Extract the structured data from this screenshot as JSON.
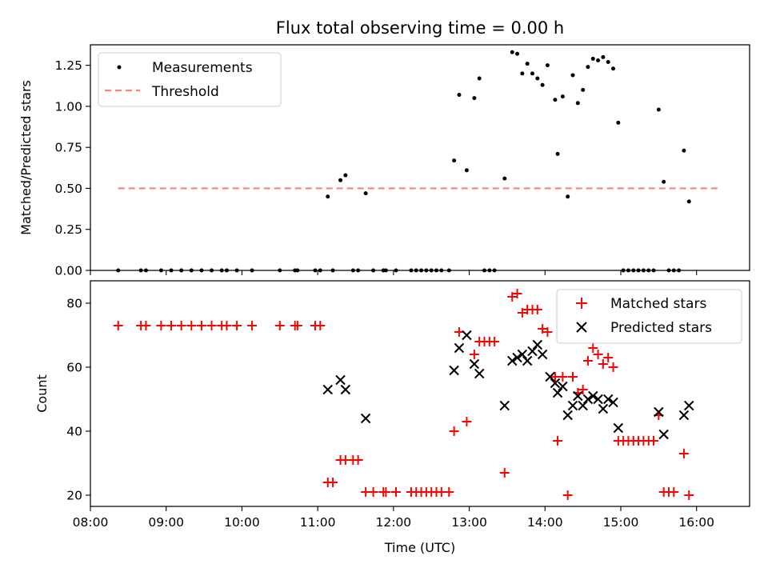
{
  "title": "Flux total observing time = 0.00 h",
  "colors": {
    "measurement": "#000000",
    "threshold": "#ff7f7f",
    "matched": "#ff0000",
    "predicted": "#000000",
    "axis": "#000000"
  },
  "chart_data": [
    {
      "type": "scatter",
      "ylabel": "Matched/Predicted stars",
      "ylim": [
        0,
        1.375
      ],
      "xlim": [
        "08:00",
        "16:42"
      ],
      "yticks": [
        "0.00",
        "0.25",
        "0.50",
        "0.75",
        "1.00",
        "1.25"
      ],
      "legend": {
        "placement": "top-left",
        "entries": [
          "Measurements",
          "Threshold"
        ]
      },
      "threshold": {
        "name": "Threshold",
        "value": 0.5,
        "x_start": "08:22",
        "x_end": "16:18",
        "style": "dashed"
      },
      "series": [
        {
          "name": "Measurements",
          "marker": "dot",
          "points": [
            [
              "08:22",
              0
            ],
            [
              "08:40",
              0
            ],
            [
              "08:44",
              0
            ],
            [
              "08:56",
              0
            ],
            [
              "09:04",
              0
            ],
            [
              "09:12",
              0
            ],
            [
              "09:20",
              0
            ],
            [
              "09:28",
              0
            ],
            [
              "09:36",
              0
            ],
            [
              "09:44",
              0
            ],
            [
              "09:48",
              0
            ],
            [
              "09:56",
              0
            ],
            [
              "10:08",
              0
            ],
            [
              "10:30",
              0
            ],
            [
              "10:42",
              0
            ],
            [
              "10:44",
              0
            ],
            [
              "10:58",
              0
            ],
            [
              "11:02",
              0
            ],
            [
              "11:08",
              0.45
            ],
            [
              "11:12",
              0
            ],
            [
              "11:18",
              0.55
            ],
            [
              "11:22",
              0.58
            ],
            [
              "11:28",
              0
            ],
            [
              "11:32",
              0
            ],
            [
              "11:38",
              0.47
            ],
            [
              "11:44",
              0
            ],
            [
              "11:52",
              0
            ],
            [
              "11:54",
              0
            ],
            [
              "12:02",
              0
            ],
            [
              "12:14",
              0
            ],
            [
              "12:18",
              0
            ],
            [
              "12:22",
              0
            ],
            [
              "12:26",
              0
            ],
            [
              "12:30",
              0
            ],
            [
              "12:34",
              0
            ],
            [
              "12:38",
              0
            ],
            [
              "12:44",
              0
            ],
            [
              "12:48",
              0.67
            ],
            [
              "12:52",
              1.07
            ],
            [
              "12:58",
              0.61
            ],
            [
              "13:04",
              1.05
            ],
            [
              "13:08",
              1.17
            ],
            [
              "13:12",
              0
            ],
            [
              "13:16",
              0
            ],
            [
              "13:20",
              0
            ],
            [
              "13:28",
              0.56
            ],
            [
              "13:34",
              1.33
            ],
            [
              "13:38",
              1.32
            ],
            [
              "13:42",
              1.2
            ],
            [
              "13:46",
              1.26
            ],
            [
              "13:50",
              1.2
            ],
            [
              "13:54",
              1.17
            ],
            [
              "13:58",
              1.13
            ],
            [
              "14:02",
              1.25
            ],
            [
              "14:08",
              1.04
            ],
            [
              "14:10",
              0.71
            ],
            [
              "14:14",
              1.06
            ],
            [
              "14:18",
              0.45
            ],
            [
              "14:22",
              1.19
            ],
            [
              "14:26",
              1.02
            ],
            [
              "14:30",
              1.1
            ],
            [
              "14:34",
              1.24
            ],
            [
              "14:38",
              1.29
            ],
            [
              "14:42",
              1.28
            ],
            [
              "14:46",
              1.3
            ],
            [
              "14:50",
              1.27
            ],
            [
              "14:54",
              1.23
            ],
            [
              "14:58",
              0.9
            ],
            [
              "15:02",
              0
            ],
            [
              "15:06",
              0
            ],
            [
              "15:10",
              0
            ],
            [
              "15:14",
              0
            ],
            [
              "15:18",
              0
            ],
            [
              "15:22",
              0
            ],
            [
              "15:26",
              0
            ],
            [
              "15:30",
              0.98
            ],
            [
              "15:34",
              0.54
            ],
            [
              "15:38",
              0
            ],
            [
              "15:42",
              0
            ],
            [
              "15:46",
              0
            ],
            [
              "15:50",
              0.73
            ],
            [
              "15:54",
              0.42
            ]
          ]
        }
      ]
    },
    {
      "type": "scatter",
      "xlabel": "Time (UTC)",
      "ylabel": "Count",
      "ylim": [
        16.5,
        87
      ],
      "xlim": [
        "08:00",
        "16:42"
      ],
      "yticks": [
        "20",
        "40",
        "60",
        "80"
      ],
      "xticks": [
        "08:00",
        "09:00",
        "10:00",
        "11:00",
        "12:00",
        "13:00",
        "14:00",
        "15:00",
        "16:00"
      ],
      "legend": {
        "placement": "top-right",
        "entries": [
          "Matched stars",
          "Predicted stars"
        ]
      },
      "series": [
        {
          "name": "Matched stars",
          "marker": "plus",
          "points": [
            [
              "08:22",
              73
            ],
            [
              "08:40",
              73
            ],
            [
              "08:44",
              73
            ],
            [
              "08:56",
              73
            ],
            [
              "09:04",
              73
            ],
            [
              "09:12",
              73
            ],
            [
              "09:20",
              73
            ],
            [
              "09:28",
              73
            ],
            [
              "09:36",
              73
            ],
            [
              "09:44",
              73
            ],
            [
              "09:48",
              73
            ],
            [
              "09:56",
              73
            ],
            [
              "10:08",
              73
            ],
            [
              "10:30",
              73
            ],
            [
              "10:42",
              73
            ],
            [
              "10:44",
              73
            ],
            [
              "10:58",
              73
            ],
            [
              "11:02",
              73
            ],
            [
              "11:08",
              24
            ],
            [
              "11:12",
              24
            ],
            [
              "11:18",
              31
            ],
            [
              "11:22",
              31
            ],
            [
              "11:28",
              31
            ],
            [
              "11:32",
              31
            ],
            [
              "11:38",
              21
            ],
            [
              "11:44",
              21
            ],
            [
              "11:52",
              21
            ],
            [
              "11:54",
              21
            ],
            [
              "12:02",
              21
            ],
            [
              "12:14",
              21
            ],
            [
              "12:18",
              21
            ],
            [
              "12:22",
              21
            ],
            [
              "12:26",
              21
            ],
            [
              "12:30",
              21
            ],
            [
              "12:34",
              21
            ],
            [
              "12:38",
              21
            ],
            [
              "12:44",
              21
            ],
            [
              "12:48",
              40
            ],
            [
              "12:52",
              71
            ],
            [
              "12:58",
              43
            ],
            [
              "13:04",
              64
            ],
            [
              "13:08",
              68
            ],
            [
              "13:12",
              68
            ],
            [
              "13:16",
              68
            ],
            [
              "13:20",
              68
            ],
            [
              "13:28",
              27
            ],
            [
              "13:34",
              82
            ],
            [
              "13:38",
              83
            ],
            [
              "13:42",
              77
            ],
            [
              "13:46",
              78
            ],
            [
              "13:50",
              78
            ],
            [
              "13:54",
              78
            ],
            [
              "13:58",
              72
            ],
            [
              "14:02",
              71
            ],
            [
              "14:08",
              57
            ],
            [
              "14:10",
              37
            ],
            [
              "14:14",
              57
            ],
            [
              "14:18",
              20
            ],
            [
              "14:22",
              57
            ],
            [
              "14:26",
              52
            ],
            [
              "14:30",
              53
            ],
            [
              "14:34",
              62
            ],
            [
              "14:38",
              66
            ],
            [
              "14:42",
              64
            ],
            [
              "14:46",
              61
            ],
            [
              "14:50",
              63
            ],
            [
              "14:54",
              60
            ],
            [
              "14:58",
              37
            ],
            [
              "15:02",
              37
            ],
            [
              "15:06",
              37
            ],
            [
              "15:10",
              37
            ],
            [
              "15:14",
              37
            ],
            [
              "15:18",
              37
            ],
            [
              "15:22",
              37
            ],
            [
              "15:26",
              37
            ],
            [
              "15:30",
              45
            ],
            [
              "15:34",
              21
            ],
            [
              "15:38",
              21
            ],
            [
              "15:42",
              21
            ],
            [
              "15:50",
              33
            ],
            [
              "15:54",
              20
            ]
          ]
        },
        {
          "name": "Predicted stars",
          "marker": "x",
          "points": [
            [
              "11:08",
              53
            ],
            [
              "11:18",
              56
            ],
            [
              "11:22",
              53
            ],
            [
              "11:38",
              44
            ],
            [
              "12:48",
              59
            ],
            [
              "12:52",
              66
            ],
            [
              "12:58",
              70
            ],
            [
              "13:04",
              61
            ],
            [
              "13:08",
              58
            ],
            [
              "13:28",
              48
            ],
            [
              "13:34",
              62
            ],
            [
              "13:38",
              63
            ],
            [
              "13:42",
              64
            ],
            [
              "13:46",
              62
            ],
            [
              "13:50",
              65
            ],
            [
              "13:54",
              67
            ],
            [
              "13:58",
              64
            ],
            [
              "14:04",
              57
            ],
            [
              "14:08",
              55
            ],
            [
              "14:10",
              52
            ],
            [
              "14:14",
              54
            ],
            [
              "14:18",
              45
            ],
            [
              "14:22",
              48
            ],
            [
              "14:26",
              51
            ],
            [
              "14:30",
              48
            ],
            [
              "14:34",
              50
            ],
            [
              "14:38",
              51
            ],
            [
              "14:42",
              50
            ],
            [
              "14:46",
              47
            ],
            [
              "14:50",
              50
            ],
            [
              "14:54",
              49
            ],
            [
              "14:58",
              41
            ],
            [
              "15:30",
              46
            ],
            [
              "15:34",
              39
            ],
            [
              "15:50",
              45
            ],
            [
              "15:54",
              48
            ]
          ]
        }
      ]
    }
  ]
}
